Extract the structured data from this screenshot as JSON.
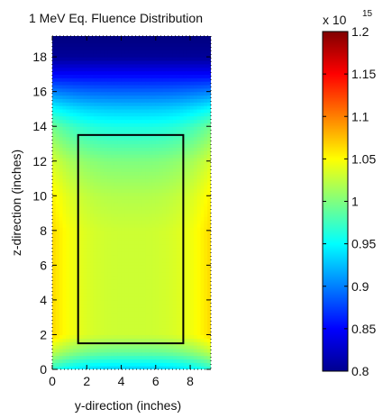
{
  "chart_data": {
    "type": "heatmap",
    "title": "1 MeV Eq. Fluence Distribution",
    "xlabel": "y-direction (inches)",
    "ylabel": "z-direction (inches)",
    "xlim": [
      0,
      9.2
    ],
    "ylim": [
      0,
      19.2
    ],
    "x_ticks": [
      "0",
      "2",
      "4",
      "6",
      "8"
    ],
    "y_ticks": [
      "0",
      "2",
      "4",
      "6",
      "8",
      "10",
      "12",
      "14",
      "16",
      "18"
    ],
    "x_tick_values": [
      0,
      2,
      4,
      6,
      8
    ],
    "y_tick_values": [
      0,
      2,
      4,
      6,
      8,
      10,
      12,
      14,
      16,
      18
    ],
    "colormap": "jet",
    "grid": false,
    "colorbar": {
      "multiplier": "x 10",
      "exponent": "15",
      "clim": [
        0.8,
        1.2
      ],
      "tick_values": [
        0.8,
        0.85,
        0.9,
        0.95,
        1.0,
        1.05,
        1.1,
        1.15,
        1.2
      ],
      "ticks": [
        "0.8",
        "0.85",
        "0.9",
        "0.95",
        "1",
        "1.05",
        "1.1",
        "1.15",
        "1.2"
      ]
    },
    "outline_rectangle": {
      "y_min": 1.5,
      "y_max": 7.6,
      "z_min": 1.5,
      "z_max": 13.5
    },
    "z_profile_center": [
      {
        "z": 0.0,
        "value": 0.93
      },
      {
        "z": 1.0,
        "value": 0.99
      },
      {
        "z": 2.0,
        "value": 1.03
      },
      {
        "z": 4.0,
        "value": 1.03
      },
      {
        "z": 8.0,
        "value": 1.03
      },
      {
        "z": 10.0,
        "value": 1.02
      },
      {
        "z": 12.0,
        "value": 1.0
      },
      {
        "z": 13.0,
        "value": 0.98
      },
      {
        "z": 14.0,
        "value": 0.96
      },
      {
        "z": 15.0,
        "value": 0.93
      },
      {
        "z": 16.0,
        "value": 0.89
      },
      {
        "z": 17.0,
        "value": 0.85
      },
      {
        "z": 18.0,
        "value": 0.81
      },
      {
        "z": 19.2,
        "value": 0.8
      }
    ],
    "edge_boost": 0.035
  }
}
